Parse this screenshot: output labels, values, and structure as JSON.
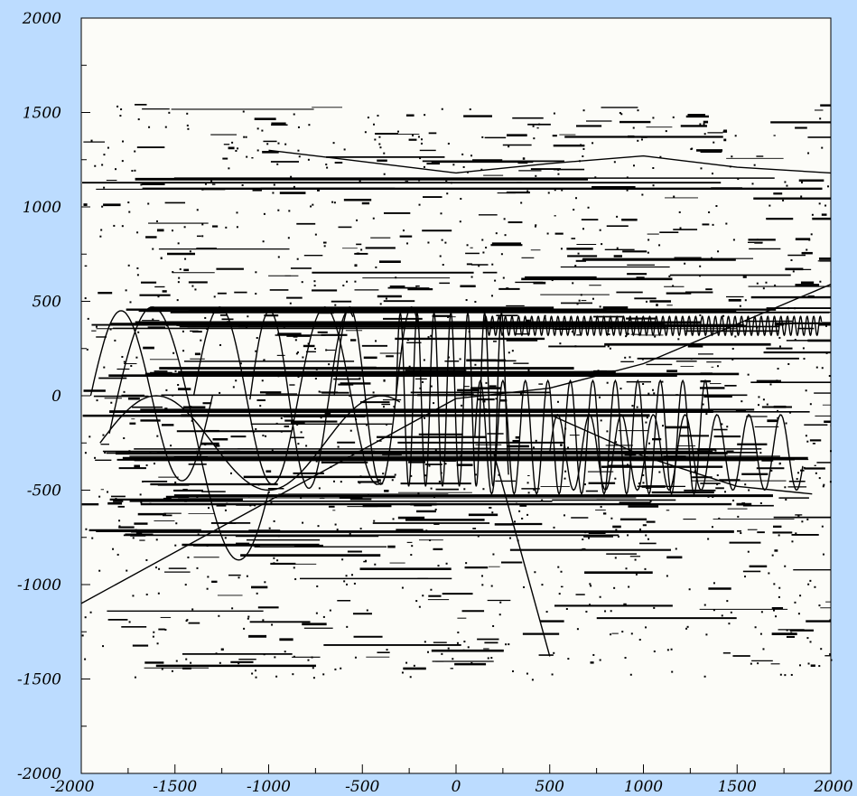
{
  "chart_data": {
    "type": "line",
    "title": "",
    "xlabel": "",
    "ylabel": "",
    "xlim": [
      -2000,
      2000
    ],
    "ylim": [
      -2000,
      2000
    ],
    "x_ticks": [
      -2000,
      -1500,
      -1000,
      -500,
      0,
      500,
      1000,
      1500,
      2000
    ],
    "y_ticks": [
      -2000,
      -1500,
      -1000,
      -500,
      0,
      500,
      1000,
      1500,
      2000
    ],
    "x_tick_labels": [
      "-2000",
      "-1500",
      "-1000",
      "-500",
      "0",
      "500",
      "1000",
      "1500",
      "2000"
    ],
    "y_tick_labels": [
      "-2000",
      "-1500",
      "-1000",
      "-500",
      "0",
      "500",
      "1000",
      "1500",
      "2000"
    ],
    "grid": false,
    "legend": "none",
    "colors": {
      "background": "#bcdcff",
      "plot_area": "#fcfcf8",
      "marks": "#000000"
    },
    "series": [
      {
        "kind": "line",
        "x": [
          -2000,
          0,
          500,
          1000,
          1500,
          2000
        ],
        "y": [
          -1100,
          -15,
          40,
          170,
          380,
          590
        ]
      },
      {
        "kind": "line",
        "x": [
          200,
          500
        ],
        "y": [
          -300,
          -1380
        ]
      },
      {
        "kind": "line",
        "x": [
          -1000,
          -500,
          0,
          500,
          1000,
          1500,
          2000
        ],
        "y": [
          1300,
          1240,
          1180,
          1230,
          1270,
          1210,
          1180
        ]
      },
      {
        "kind": "sine",
        "x_range": [
          -1950,
          -1300
        ],
        "center": 0,
        "amplitude": 450,
        "period": 650
      },
      {
        "kind": "sine",
        "x_range": [
          -1850,
          -1000
        ],
        "center": -200,
        "amplitude": 670,
        "period": 920
      },
      {
        "kind": "sine",
        "x_range": [
          -1400,
          -400
        ],
        "center": 0,
        "amplitude": 470,
        "period": 560
      },
      {
        "kind": "sine",
        "x_range": [
          -1100,
          -550
        ],
        "center": -20,
        "amplitude": 470,
        "period": 420
      },
      {
        "kind": "sine",
        "x_range": [
          -650,
          -200
        ],
        "center": 0,
        "amplitude": 470,
        "period": 330
      },
      {
        "kind": "sine",
        "x_range": [
          -320,
          280
        ],
        "center": -20,
        "amplitude": 460,
        "period": 90
      },
      {
        "kind": "sine",
        "x_range": [
          100,
          1350
        ],
        "center": -220,
        "amplitude": 300,
        "period": 120
      },
      {
        "kind": "sine",
        "x_range": [
          500,
          1850
        ],
        "center": -300,
        "amplitude": 200,
        "period": 170
      },
      {
        "kind": "sine",
        "x_range": [
          150,
          1950
        ],
        "center": 370,
        "amplitude": 50,
        "period": 35
      },
      {
        "kind": "sine",
        "x_range": [
          -1900,
          -300
        ],
        "center": -250,
        "amplitude": 250,
        "period": 1200
      },
      {
        "kind": "line",
        "x": [
          500,
          1000,
          1500,
          1900
        ],
        "y": [
          -100,
          -320,
          -480,
          -520
        ]
      }
    ]
  }
}
